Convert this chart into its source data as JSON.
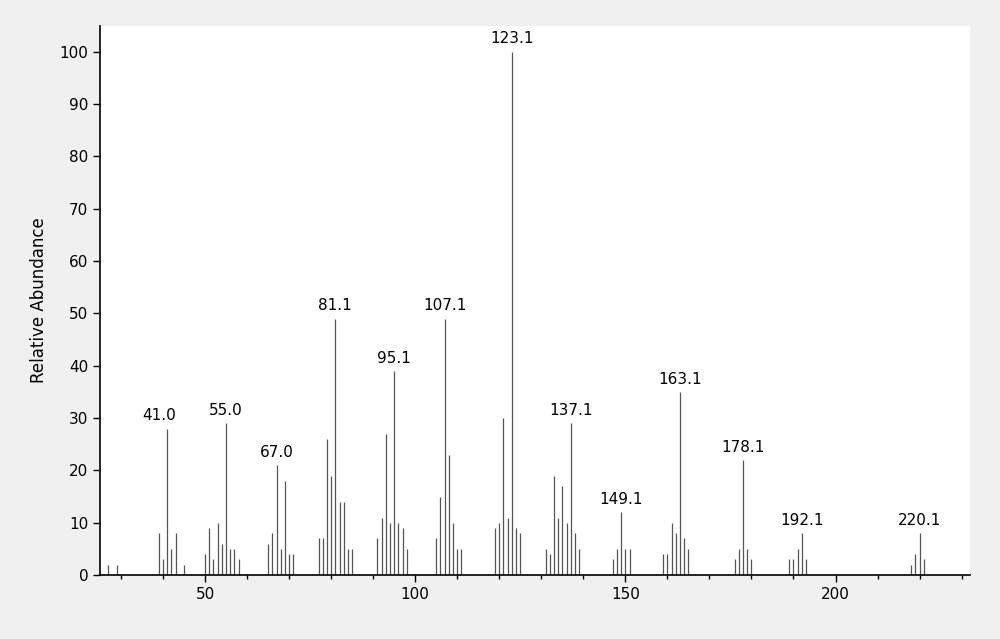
{
  "peaks": [
    [
      27,
      2
    ],
    [
      29,
      2
    ],
    [
      39,
      8
    ],
    [
      40,
      3
    ],
    [
      41,
      28
    ],
    [
      42,
      5
    ],
    [
      43,
      8
    ],
    [
      45,
      2
    ],
    [
      50,
      4
    ],
    [
      51,
      9
    ],
    [
      52,
      3
    ],
    [
      53,
      10
    ],
    [
      54,
      6
    ],
    [
      55,
      29
    ],
    [
      56,
      5
    ],
    [
      57,
      5
    ],
    [
      58,
      3
    ],
    [
      65,
      6
    ],
    [
      66,
      8
    ],
    [
      67,
      21
    ],
    [
      68,
      5
    ],
    [
      69,
      18
    ],
    [
      70,
      4
    ],
    [
      71,
      4
    ],
    [
      77,
      7
    ],
    [
      78,
      7
    ],
    [
      79,
      26
    ],
    [
      80,
      19
    ],
    [
      81,
      49
    ],
    [
      82,
      14
    ],
    [
      83,
      14
    ],
    [
      84,
      5
    ],
    [
      85,
      5
    ],
    [
      91,
      7
    ],
    [
      92,
      11
    ],
    [
      93,
      27
    ],
    [
      94,
      10
    ],
    [
      95,
      39
    ],
    [
      96,
      10
    ],
    [
      97,
      9
    ],
    [
      98,
      5
    ],
    [
      105,
      7
    ],
    [
      106,
      15
    ],
    [
      107,
      49
    ],
    [
      108,
      23
    ],
    [
      109,
      10
    ],
    [
      110,
      5
    ],
    [
      111,
      5
    ],
    [
      119,
      9
    ],
    [
      120,
      10
    ],
    [
      121,
      30
    ],
    [
      122,
      11
    ],
    [
      123,
      100
    ],
    [
      124,
      9
    ],
    [
      125,
      8
    ],
    [
      131,
      5
    ],
    [
      132,
      4
    ],
    [
      133,
      19
    ],
    [
      134,
      11
    ],
    [
      135,
      17
    ],
    [
      136,
      10
    ],
    [
      137,
      29
    ],
    [
      138,
      8
    ],
    [
      139,
      5
    ],
    [
      147,
      3
    ],
    [
      148,
      5
    ],
    [
      149,
      12
    ],
    [
      150,
      5
    ],
    [
      151,
      5
    ],
    [
      159,
      4
    ],
    [
      160,
      4
    ],
    [
      161,
      10
    ],
    [
      162,
      8
    ],
    [
      163,
      35
    ],
    [
      164,
      7
    ],
    [
      165,
      5
    ],
    [
      176,
      3
    ],
    [
      177,
      5
    ],
    [
      178,
      22
    ],
    [
      179,
      5
    ],
    [
      180,
      3
    ],
    [
      189,
      3
    ],
    [
      190,
      3
    ],
    [
      191,
      5
    ],
    [
      192,
      8
    ],
    [
      193,
      3
    ],
    [
      218,
      2
    ],
    [
      219,
      4
    ],
    [
      220,
      8
    ],
    [
      221,
      3
    ]
  ],
  "labeled_peaks": [
    [
      41,
      28,
      "41.0",
      -2,
      1
    ],
    [
      55,
      29,
      "55.0",
      0,
      1
    ],
    [
      67,
      21,
      "67.0",
      0,
      1
    ],
    [
      81,
      49,
      "81.1",
      0,
      1
    ],
    [
      95,
      39,
      "95.1",
      0,
      1
    ],
    [
      107,
      49,
      "107.1",
      0,
      1
    ],
    [
      123,
      100,
      "123.1",
      0,
      1
    ],
    [
      137,
      29,
      "137.1",
      0,
      1
    ],
    [
      149,
      12,
      "149.1",
      0,
      1
    ],
    [
      163,
      35,
      "163.1",
      0,
      1
    ],
    [
      178,
      22,
      "178.1",
      0,
      1
    ],
    [
      192,
      8,
      "192.1",
      0,
      1
    ],
    [
      220,
      8,
      "220.1",
      0,
      1
    ]
  ],
  "ylabel": "Relative Abundance",
  "xlim": [
    25,
    232
  ],
  "ylim": [
    0,
    105
  ],
  "yticks": [
    0,
    10,
    20,
    30,
    40,
    50,
    60,
    70,
    80,
    90,
    100
  ],
  "xticks": [
    50,
    100,
    150,
    200
  ],
  "bar_color": "#555555",
  "background_color": "#f0f0f0",
  "plot_bg_color": "#ffffff",
  "label_fontsize": 11,
  "axis_label_fontsize": 12,
  "tick_fontsize": 11
}
